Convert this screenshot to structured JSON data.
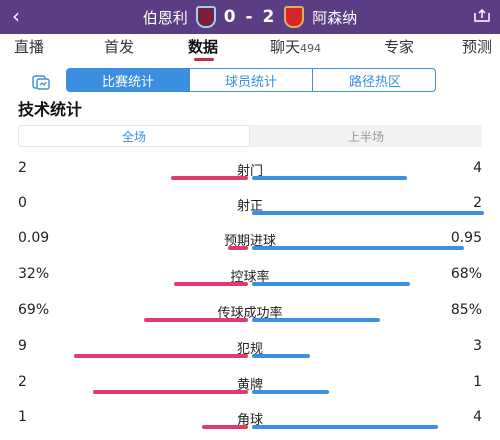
{
  "header": {
    "back_icon": "back-arrow-icon",
    "home_team": "伯恩利",
    "away_team": "阿森纳",
    "score": "0 - 2",
    "home_crest": "burnley-crest-icon",
    "away_crest": "arsenal-crest-icon",
    "share_icon": "share-icon",
    "colors": {
      "bg": "#5a3d83"
    }
  },
  "tabs": [
    {
      "label": "直播",
      "count": ""
    },
    {
      "label": "首发",
      "count": ""
    },
    {
      "label": "数据",
      "count": "",
      "active": true
    },
    {
      "label": "聊天",
      "count": "494"
    },
    {
      "label": "专家",
      "count": ""
    },
    {
      "label": "预测",
      "count": ""
    }
  ],
  "subtabs": {
    "icon": "stats-card-icon",
    "items": [
      {
        "label": "比赛统计",
        "active": true
      },
      {
        "label": "球员统计",
        "active": false
      },
      {
        "label": "路径热区",
        "active": false
      }
    ]
  },
  "section": {
    "title": "技术统计"
  },
  "period": {
    "full": "全场",
    "first_half": "上半场",
    "selected": "全场"
  },
  "colors": {
    "home": "#e03b6a",
    "away": "#3d8fe0",
    "accent": "#3c8ee0"
  },
  "stats": [
    {
      "name": "射门",
      "home": "2",
      "away": "4",
      "home_n": 2,
      "away_n": 4
    },
    {
      "name": "射正",
      "home": "0",
      "away": "2",
      "home_n": 0,
      "away_n": 2
    },
    {
      "name": "预期进球",
      "home": "0.09",
      "away": "0.95",
      "home_n": 0.09,
      "away_n": 0.95
    },
    {
      "name": "控球率",
      "home": "32%",
      "away": "68%",
      "home_n": 32,
      "away_n": 68
    },
    {
      "name": "传球成功率",
      "home": "69%",
      "away": "85%",
      "home_n": 69,
      "away_n": 85
    },
    {
      "name": "犯规",
      "home": "9",
      "away": "3",
      "home_n": 9,
      "away_n": 3
    },
    {
      "name": "黄牌",
      "home": "2",
      "away": "1",
      "home_n": 2,
      "away_n": 1
    },
    {
      "name": "角球",
      "home": "1",
      "away": "4",
      "home_n": 1,
      "away_n": 4
    }
  ]
}
